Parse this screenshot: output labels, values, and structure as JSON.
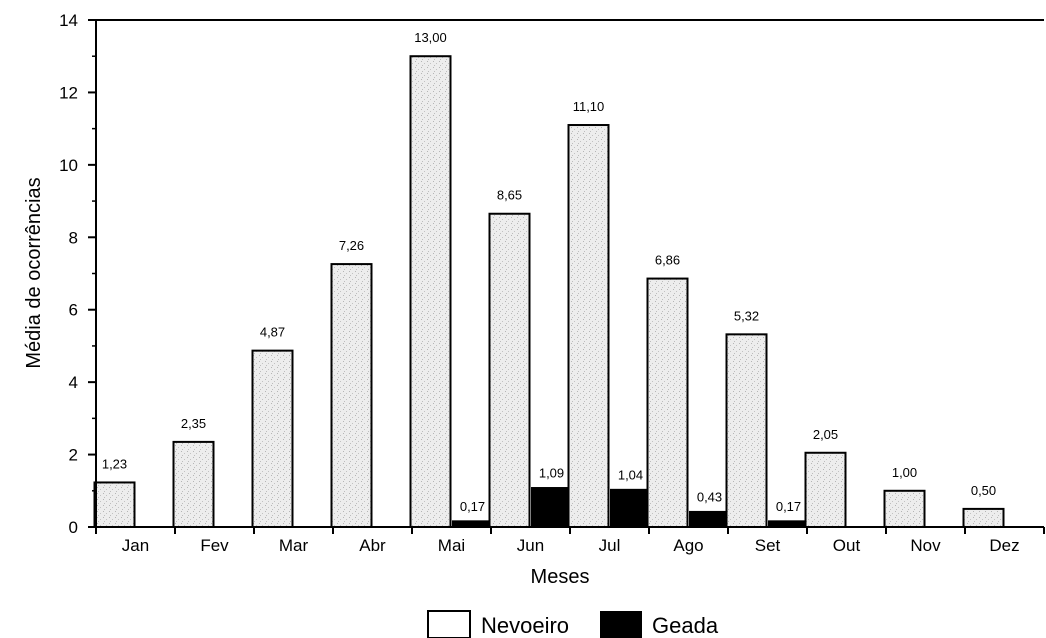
{
  "chart_data": {
    "type": "bar",
    "xlabel": "Meses",
    "ylabel": "Média de ocorrências",
    "ylim": [
      0,
      14
    ],
    "yticks": [
      0,
      2,
      4,
      6,
      8,
      10,
      12,
      14
    ],
    "categories": [
      "Jan",
      "Fev",
      "Mar",
      "Abr",
      "Mai",
      "Jun",
      "Jul",
      "Ago",
      "Set",
      "Out",
      "Nov",
      "Dez"
    ],
    "series": [
      {
        "name": "Nevoeiro",
        "color": "#e6e6e6",
        "values": [
          1.23,
          2.35,
          4.87,
          7.26,
          13.0,
          8.65,
          11.1,
          6.86,
          5.32,
          2.05,
          1.0,
          0.5
        ],
        "labels": [
          "1,23",
          "2,35",
          "4,87",
          "7,26",
          "13,00",
          "8,65",
          "11,10",
          "6,86",
          "5,32",
          "2,05",
          "1,00",
          "0,50"
        ]
      },
      {
        "name": "Geada",
        "color": "#000000",
        "values": [
          0,
          0,
          0,
          0,
          0.17,
          1.09,
          1.04,
          0.43,
          0.17,
          0,
          0,
          0
        ],
        "labels": [
          "",
          "",
          "",
          "",
          "0,17",
          "1,09",
          "1,04",
          "0,43",
          "0,17",
          "",
          "",
          ""
        ]
      }
    ],
    "legend_position": "bottom-center",
    "grid": false
  }
}
